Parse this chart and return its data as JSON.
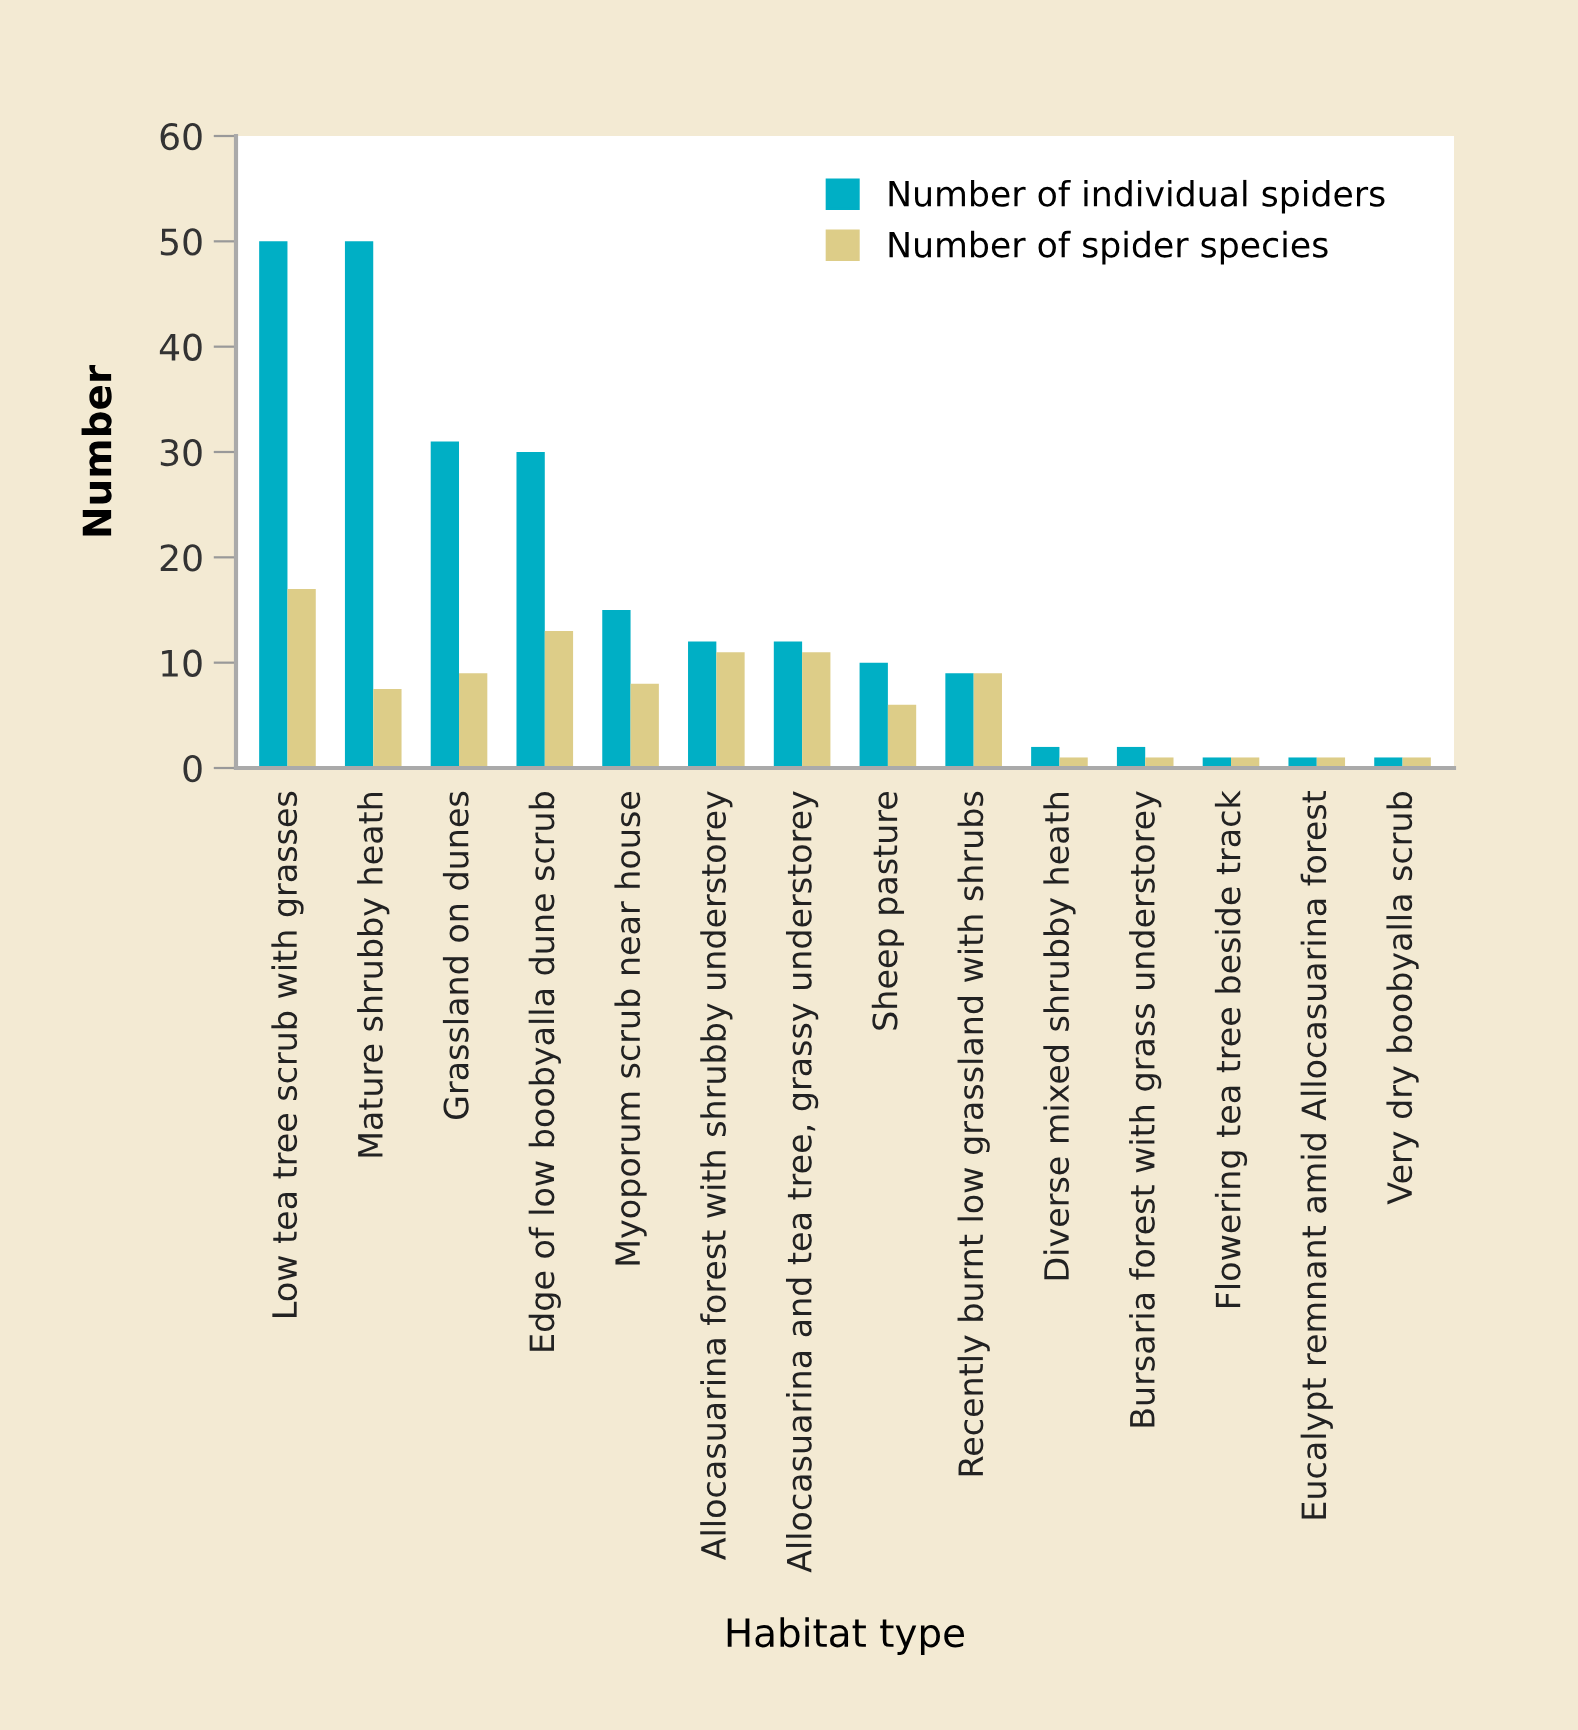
{
  "chart_data": {
    "type": "bar",
    "xlabel": "Habitat type",
    "ylabel": "Number",
    "categories": [
      "Low tea tree scrub with grasses",
      "Mature shrubby heath",
      "Grassland on dunes",
      "Edge of low boobyalla dune scrub",
      "Myoporum scrub near house",
      "Allocasuarina forest with shrubby understorey",
      "Allocasuarina and tea tree, grassy understorey",
      "Sheep pasture",
      "Recently burnt low grassland with shrubs",
      "Diverse mixed shrubby heath",
      "Bursaria forest with grass understorey",
      "Flowering tea tree beside track",
      "Eucalypt remnant amid Allocasuarina forest",
      "Very dry boobyalla scrub"
    ],
    "series": [
      {
        "name": "Number of individual spiders",
        "color": "#00afc5",
        "values": [
          50,
          50,
          31,
          30,
          15,
          12,
          12,
          10,
          9,
          2,
          2,
          1,
          1,
          1
        ]
      },
      {
        "name": "Number of spider species",
        "color": "#ddcd88",
        "values": [
          17,
          7.5,
          9,
          13,
          8,
          11,
          11,
          6,
          9,
          1,
          1,
          1,
          1,
          1
        ]
      }
    ],
    "ylim": [
      0,
      60
    ],
    "yticks": [
      0,
      10,
      20,
      30,
      40,
      50,
      60
    ],
    "grid": false,
    "legend": "top right"
  }
}
